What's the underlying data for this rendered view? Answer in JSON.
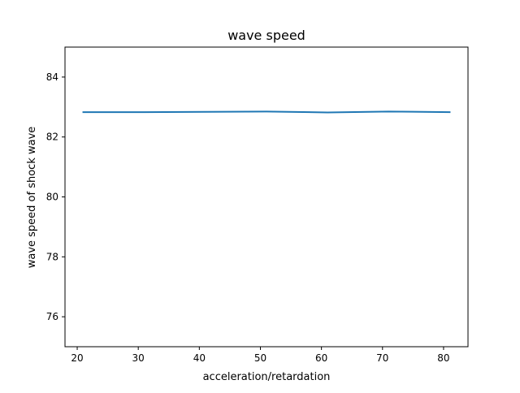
{
  "chart_data": {
    "type": "line",
    "title": "wave speed",
    "xlabel": "acceleration/retardation",
    "ylabel": "wave speed of shock wave",
    "xlim": [
      18,
      84
    ],
    "ylim": [
      75,
      85
    ],
    "xticks": [
      20,
      30,
      40,
      50,
      60,
      70,
      80
    ],
    "yticks": [
      76,
      78,
      80,
      82,
      84
    ],
    "grid": false,
    "legend": "none",
    "series": [
      {
        "color": "#1f77b4",
        "x": [
          21,
          31,
          41,
          51,
          61,
          71,
          81
        ],
        "y": [
          82.83,
          82.83,
          82.84,
          82.85,
          82.82,
          82.85,
          82.83
        ]
      }
    ]
  }
}
